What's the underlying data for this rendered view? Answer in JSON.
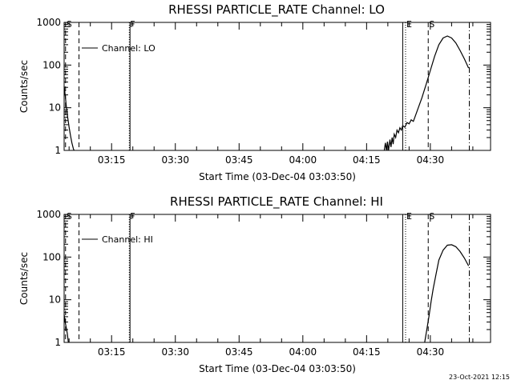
{
  "figure": {
    "timestamp": "23-Oct-2021 12:15"
  },
  "chart_data": [
    {
      "type": "line",
      "title": "RHESSI PARTICLE_RATE Channel: LO",
      "xlabel": "Start Time (03-Dec-04 03:03:50)",
      "ylabel": "Counts/sec",
      "yscale": "log",
      "ylim": [
        1,
        1000
      ],
      "xlim": [
        "03:03:50",
        "04:44:10"
      ],
      "grid": false,
      "legend": {
        "position": "top-left",
        "label": "Channel: LO"
      },
      "x_ticks": [
        "03:15",
        "03:30",
        "03:45",
        "04:00",
        "04:15",
        "04:30"
      ],
      "y_ticks": [
        "1",
        "10",
        "100",
        "1000"
      ],
      "markers": [
        {
          "label": "S",
          "time": "03:04:10",
          "style": "dashed"
        },
        {
          "label": "",
          "time": "03:07:20",
          "style": "dashed"
        },
        {
          "label": "F",
          "time": "03:19:10",
          "style": "dotted"
        },
        {
          "label": "",
          "time": "03:19:20",
          "style": "solid"
        },
        {
          "label": "",
          "time": "04:23:30",
          "style": "solid"
        },
        {
          "label": "E",
          "time": "04:24:10",
          "style": "dotted"
        },
        {
          "label": "S",
          "time": "04:29:30",
          "style": "dashed"
        },
        {
          "label": "",
          "time": "04:39:10",
          "style": "dashdot"
        }
      ],
      "series": [
        {
          "name": "Channel: LO",
          "points": [
            [
              "03:03:50",
              32
            ],
            [
              "03:04:05",
              20
            ],
            [
              "03:04:20",
              11
            ],
            [
              "03:04:40",
              6
            ],
            [
              "03:05:00",
              3.5
            ],
            [
              "03:05:20",
              2.2
            ],
            [
              "03:05:40",
              1.5
            ],
            [
              "03:06:00",
              1.1
            ],
            [
              "03:06:10",
              1.0
            ],
            [
              "04:19:10",
              1.0
            ],
            [
              "04:19:25",
              1.5
            ],
            [
              "04:19:40",
              1.0
            ],
            [
              "04:19:55",
              1.6
            ],
            [
              "04:20:10",
              1.0
            ],
            [
              "04:20:30",
              1.8
            ],
            [
              "04:20:45",
              1.2
            ],
            [
              "04:21:00",
              2.0
            ],
            [
              "04:21:15",
              1.4
            ],
            [
              "04:21:30",
              2.4
            ],
            [
              "04:21:50",
              2.0
            ],
            [
              "04:22:10",
              3.0
            ],
            [
              "04:22:30",
              2.6
            ],
            [
              "04:22:50",
              3.4
            ],
            [
              "04:23:10",
              3.0
            ],
            [
              "04:23:30",
              3.8
            ],
            [
              "04:24:00",
              3.5
            ],
            [
              "04:24:30",
              4.5
            ],
            [
              "04:25:00",
              4.2
            ],
            [
              "04:25:30",
              5.2
            ],
            [
              "04:26:00",
              4.8
            ],
            [
              "04:26:30",
              6.5
            ],
            [
              "04:27:00",
              9
            ],
            [
              "04:28:00",
              17
            ],
            [
              "04:29:00",
              35
            ],
            [
              "04:30:00",
              75
            ],
            [
              "04:31:00",
              160
            ],
            [
              "04:32:00",
              300
            ],
            [
              "04:33:00",
              430
            ],
            [
              "04:34:00",
              480
            ],
            [
              "04:35:00",
              430
            ],
            [
              "04:36:00",
              330
            ],
            [
              "04:37:00",
              220
            ],
            [
              "04:38:00",
              140
            ],
            [
              "04:39:00",
              85
            ]
          ]
        }
      ]
    },
    {
      "type": "line",
      "title": "RHESSI PARTICLE_RATE Channel: HI",
      "xlabel": "Start Time (03-Dec-04 03:03:50)",
      "ylabel": "Counts/sec",
      "yscale": "log",
      "ylim": [
        1,
        1000
      ],
      "xlim": [
        "03:03:50",
        "04:44:10"
      ],
      "grid": false,
      "legend": {
        "position": "top-left",
        "label": "Channel: HI"
      },
      "x_ticks": [
        "03:15",
        "03:30",
        "03:45",
        "04:00",
        "04:15",
        "04:30"
      ],
      "y_ticks": [
        "1",
        "10",
        "100",
        "1000"
      ],
      "markers": [
        {
          "label": "S",
          "time": "03:04:10",
          "style": "dashed"
        },
        {
          "label": "",
          "time": "03:07:20",
          "style": "dashed"
        },
        {
          "label": "F",
          "time": "03:19:10",
          "style": "dotted"
        },
        {
          "label": "",
          "time": "03:19:20",
          "style": "solid"
        },
        {
          "label": "",
          "time": "04:23:30",
          "style": "solid"
        },
        {
          "label": "E",
          "time": "04:24:10",
          "style": "dotted"
        },
        {
          "label": "S",
          "time": "04:29:30",
          "style": "dashed"
        },
        {
          "label": "",
          "time": "04:39:10",
          "style": "dashdot"
        }
      ],
      "series": [
        {
          "name": "Channel: HI",
          "points": [
            [
              "03:03:50",
              4.5
            ],
            [
              "03:04:05",
              3
            ],
            [
              "03:04:20",
              2.2
            ],
            [
              "03:04:35",
              1.6
            ],
            [
              "03:04:50",
              1.0
            ],
            [
              "04:28:40",
              1.0
            ],
            [
              "04:29:10",
              2.0
            ],
            [
              "04:29:40",
              4
            ],
            [
              "04:30:10",
              9
            ],
            [
              "04:30:40",
              18
            ],
            [
              "04:31:20",
              40
            ],
            [
              "04:32:00",
              85
            ],
            [
              "04:33:00",
              145
            ],
            [
              "04:34:00",
              190
            ],
            [
              "04:35:00",
              195
            ],
            [
              "04:36:00",
              175
            ],
            [
              "04:37:00",
              135
            ],
            [
              "04:38:00",
              95
            ],
            [
              "04:39:00",
              62
            ]
          ]
        }
      ]
    }
  ]
}
